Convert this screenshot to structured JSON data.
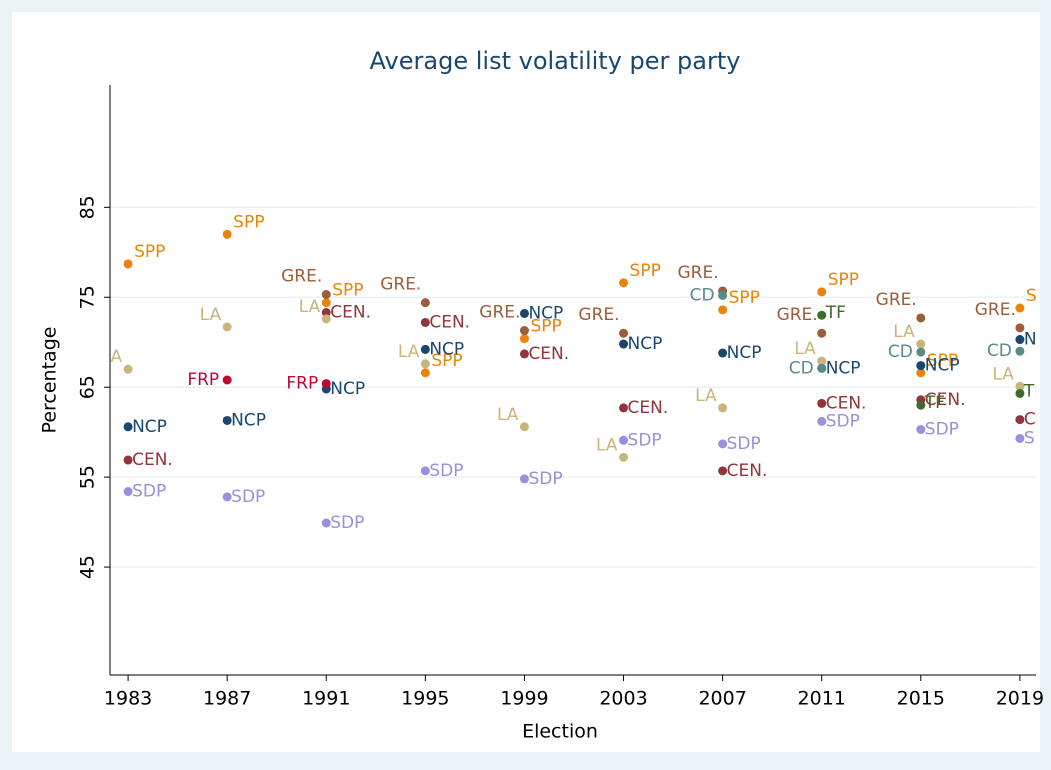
{
  "chart_data": {
    "type": "scatter",
    "title": "Average list volatility per party",
    "x_label": "Election",
    "y_label": "Percentage",
    "xlim": [
      1982.27,
      2019.65
    ],
    "ylim": [
      33,
      98.6
    ],
    "xticks": [
      1983,
      1987,
      1991,
      1995,
      1999,
      2003,
      2007,
      2011,
      2015,
      2019
    ],
    "yticks": [
      45,
      55,
      65,
      75,
      85
    ],
    "grid": true,
    "series": [
      {
        "name": "SPP",
        "color": "#e8830c",
        "x": [
          1983,
          1987,
          1991,
          1995,
          1999,
          2003,
          2007,
          2011,
          2015,
          2019
        ],
        "values": [
          78.7,
          82.0,
          74.4,
          66.6,
          70.4,
          76.6,
          73.6,
          75.6,
          66.6,
          73.8
        ]
      },
      {
        "name": "NCP",
        "color": "#1a476f",
        "x": [
          1983,
          1987,
          1991,
          1995,
          1999,
          2003,
          2007,
          2011,
          2015,
          2019
        ],
        "values": [
          60.6,
          61.3,
          64.8,
          69.2,
          73.2,
          69.8,
          68.8,
          67.1,
          67.4,
          70.3
        ]
      },
      {
        "name": "CEN.",
        "color": "#90353b",
        "x": [
          1983,
          1991,
          1995,
          1999,
          2003,
          2007,
          2011,
          2015,
          2019
        ],
        "values": [
          56.9,
          73.3,
          72.2,
          68.7,
          62.7,
          55.7,
          63.2,
          63.6,
          61.4
        ]
      },
      {
        "name": "SDP",
        "color": "#9a8fdc",
        "x": [
          1983,
          1987,
          1991,
          1995,
          1999,
          2003,
          2007,
          2011,
          2015,
          2019
        ],
        "values": [
          53.4,
          52.8,
          49.9,
          55.7,
          54.8,
          59.1,
          58.7,
          61.2,
          60.3,
          59.3
        ]
      },
      {
        "name": "LA",
        "color": "#c9b57a",
        "x": [
          1983,
          1987,
          1991,
          1995,
          1999,
          2003,
          2007,
          2011,
          2015,
          2019
        ],
        "values": [
          67.0,
          71.7,
          72.6,
          67.6,
          60.6,
          57.2,
          62.7,
          67.9,
          69.8,
          65.1
        ]
      },
      {
        "name": "GRE.",
        "color": "#9c5d3a",
        "x": [
          1991,
          1995,
          1999,
          2003,
          2007,
          2011,
          2015,
          2019
        ],
        "values": [
          75.3,
          74.4,
          71.3,
          71.0,
          75.7,
          71.0,
          72.7,
          71.6
        ]
      },
      {
        "name": "FRP",
        "color": "#c10534",
        "x": [
          1987,
          1991
        ],
        "values": [
          65.8,
          65.4
        ]
      },
      {
        "name": "CD",
        "color": "#5a8a8a",
        "x": [
          2007,
          2011,
          2015,
          2019
        ],
        "values": [
          75.2,
          67.1,
          68.9,
          69.0
        ]
      },
      {
        "name": "TF",
        "color": "#3f6b2a",
        "x": [
          2011,
          2015,
          2019
        ],
        "values": [
          73.0,
          63.0,
          64.3
        ]
      }
    ]
  }
}
